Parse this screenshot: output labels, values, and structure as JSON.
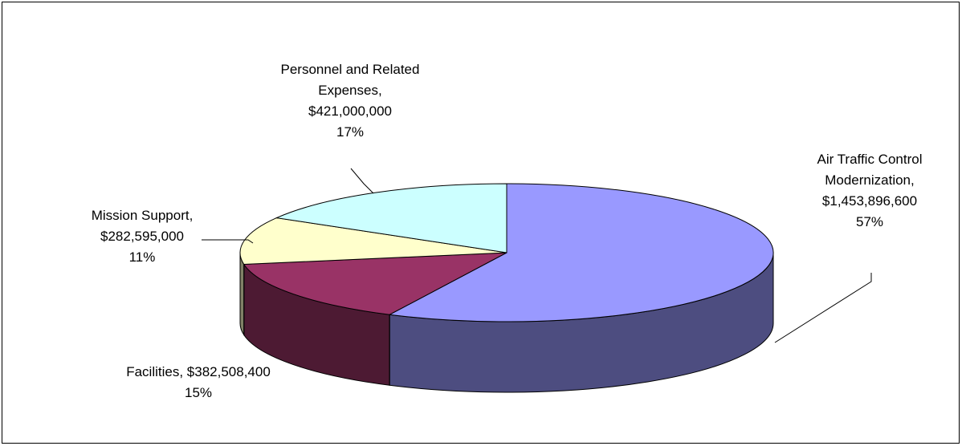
{
  "chart_data": {
    "type": "pie",
    "title": "",
    "slices": [
      {
        "name": "Air Traffic Control Modernization",
        "value": 1453896600,
        "percent": 57,
        "color": "#9999FF",
        "label_lines": [
          "Air Traffic Control",
          "Modernization,",
          "$1,453,896,600",
          "57%"
        ]
      },
      {
        "name": "Facilities",
        "value": 382508400,
        "percent": 15,
        "color": "#993366",
        "label_lines": [
          "Facilities,  $382,508,400",
          "15%"
        ]
      },
      {
        "name": "Mission Support",
        "value": 282595000,
        "percent": 11,
        "color": "#FFFFCC",
        "label_lines": [
          "Mission Support,",
          "$282,595,000",
          "11%"
        ]
      },
      {
        "name": "Personnel and Related Expenses",
        "value": 421000000,
        "percent": 17,
        "color": "#CCFFFF",
        "label_lines": [
          "Personnel and Related",
          "Expenses,",
          "$421,000,000",
          "17%"
        ]
      }
    ],
    "three_d": true,
    "legend": "none",
    "border": true
  }
}
